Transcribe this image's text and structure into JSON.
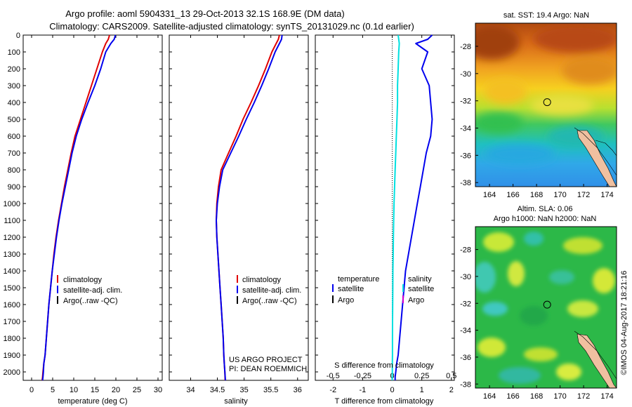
{
  "figure": {
    "title_line1": "Argo profile: aoml 5904331_13 29-Oct-2013 32.1S 168.9E (DM data)",
    "title_line2": "Climatology: CARS2009. Satellite-adjusted climatology: synTS_20131029.nc (0.1d earlier)",
    "project_line1": "US ARGO PROJECT",
    "project_line2": "PI: DEAN ROEMMICH",
    "stamp": "©IMOS 04-Aug-2017 18:21:16"
  },
  "colors": {
    "climatology": "#e00000",
    "satellite": "#0000ee",
    "argo": "#000000",
    "salinity_satellite": "#00e0e0",
    "salinity_argo": "#d000d0"
  },
  "depth_axis": {
    "ticks": [
      "0",
      "100",
      "200",
      "300",
      "400",
      "500",
      "600",
      "700",
      "800",
      "900",
      "1000",
      "1100",
      "1200",
      "1300",
      "1400",
      "1500",
      "1600",
      "1700",
      "1800",
      "1900",
      "2000"
    ],
    "range": [
      0,
      2050
    ]
  },
  "legend": {
    "climatology": "climatology",
    "satellite": "satellite-adj. clim.",
    "argo": "Argo(..raw -QC)"
  },
  "diff_legend": {
    "temp_header": "temperature",
    "sal_header": "salinity",
    "temp_sat": "satellite",
    "temp_argo": "Argo",
    "sal_sat": "satellite",
    "sal_argo": "Argo"
  },
  "chart_data": [
    {
      "type": "line",
      "xlabel": "temperature (deg C)",
      "ylabel": "",
      "xlim": [
        -2,
        31
      ],
      "ylim": [
        2050,
        0
      ],
      "xticks": [
        "0",
        "5",
        "10",
        "15",
        "20",
        "25",
        "30"
      ],
      "series": [
        {
          "name": "climatology",
          "x": [
            18.5,
            18.2,
            17.6,
            16.8,
            15.5,
            14.2,
            12.9,
            11.6,
            10.3,
            9.4,
            8.6,
            7.8,
            7.1,
            6.4,
            5.8,
            5.3,
            4.9,
            4.5,
            4.1,
            3.8,
            3.5,
            3.2,
            2.9,
            2.7,
            2.6,
            2.5
          ],
          "y": [
            0,
            25,
            50,
            100,
            200,
            300,
            400,
            500,
            600,
            700,
            800,
            900,
            1000,
            1100,
            1200,
            1300,
            1400,
            1500,
            1600,
            1700,
            1800,
            1900,
            1950,
            2000,
            2030,
            2050
          ]
        },
        {
          "name": "satellite-adj. clim.",
          "x": [
            19.9,
            19.6,
            18.8,
            17.6,
            16.4,
            15.0,
            13.4,
            11.9,
            10.6,
            9.6,
            8.8,
            8.0,
            7.2,
            6.5,
            5.9,
            5.4,
            4.9,
            4.5,
            4.1,
            3.8,
            3.5,
            3.2,
            2.9,
            2.8,
            2.7,
            2.6
          ],
          "y": [
            0,
            25,
            50,
            100,
            200,
            300,
            400,
            500,
            600,
            700,
            800,
            900,
            1000,
            1100,
            1200,
            1300,
            1400,
            1500,
            1600,
            1700,
            1800,
            1900,
            1950,
            2000,
            2030,
            2050
          ]
        }
      ]
    },
    {
      "type": "line",
      "xlabel": "salinity",
      "ylabel": "",
      "xlim": [
        33.6,
        36.2
      ],
      "ylim": [
        2050,
        0
      ],
      "xticks": [
        "34",
        "34.5",
        "35",
        "35.5",
        "36"
      ],
      "series": [
        {
          "name": "climatology",
          "x": [
            35.66,
            35.64,
            35.6,
            35.52,
            35.4,
            35.27,
            35.13,
            34.98,
            34.85,
            34.71,
            34.57,
            34.52,
            34.49,
            34.48,
            34.49,
            34.51,
            34.53,
            34.55,
            34.57,
            34.59,
            34.61,
            34.62,
            34.63,
            34.64,
            34.645
          ],
          "y": [
            0,
            25,
            50,
            100,
            200,
            300,
            400,
            500,
            600,
            700,
            800,
            900,
            1000,
            1100,
            1200,
            1300,
            1400,
            1500,
            1600,
            1700,
            1800,
            1900,
            1950,
            2000,
            2050
          ]
        },
        {
          "name": "satellite-adj. clim.",
          "x": [
            35.71,
            35.7,
            35.66,
            35.58,
            35.46,
            35.33,
            35.19,
            35.04,
            34.9,
            34.75,
            34.6,
            34.54,
            34.5,
            34.48,
            34.49,
            34.51,
            34.53,
            34.55,
            34.57,
            34.59,
            34.61,
            34.62,
            34.63,
            34.64,
            34.65
          ],
          "y": [
            0,
            25,
            50,
            100,
            200,
            300,
            400,
            500,
            600,
            700,
            800,
            900,
            1000,
            1100,
            1200,
            1300,
            1400,
            1500,
            1600,
            1700,
            1800,
            1900,
            1950,
            2000,
            2050
          ]
        }
      ]
    },
    {
      "type": "line",
      "xlabel": "T difference from climatology",
      "ylabel": "",
      "xlim": [
        -2.6,
        2.1
      ],
      "ylim": [
        2050,
        0
      ],
      "xticks": [
        "-2",
        "-1",
        "0",
        "1",
        "2"
      ],
      "top_label": "S difference from climatology",
      "top_ticks": [
        "-0.5",
        "-0.25",
        "0",
        "0.25",
        "0.5"
      ],
      "top_xlim": [
        -0.65,
        0.525
      ],
      "series": [
        {
          "name": "temperature satellite",
          "x": [
            1.35,
            1.2,
            0.8,
            1.2,
            1.0,
            1.25,
            1.3,
            1.35,
            1.3,
            1.15,
            1.05,
            0.95,
            0.85,
            0.75,
            0.65,
            0.55,
            0.45,
            0.4,
            0.35,
            0.3,
            0.25,
            0.2,
            0.15,
            0.12,
            0.1,
            0.1
          ],
          "y": [
            0,
            25,
            50,
            100,
            200,
            300,
            400,
            500,
            600,
            700,
            800,
            900,
            1000,
            1100,
            1200,
            1300,
            1400,
            1500,
            1600,
            1700,
            1800,
            1900,
            1950,
            2000,
            2030,
            2050
          ]
        },
        {
          "name": "salinity satellite",
          "x": [
            0.05,
            0.055,
            0.06,
            0.055,
            0.05,
            0.045,
            0.045,
            0.04,
            0.035,
            0.03,
            0.025,
            0.02,
            0.015,
            0.012,
            0.01,
            0.008,
            0.006,
            0.005,
            0.004,
            0.003,
            0.002,
            0.002,
            0.001,
            0.001,
            0.0
          ],
          "y": [
            0,
            25,
            50,
            100,
            200,
            300,
            400,
            500,
            600,
            700,
            800,
            900,
            1000,
            1100,
            1200,
            1300,
            1400,
            1500,
            1600,
            1700,
            1800,
            1900,
            1950,
            2000,
            2050
          ]
        }
      ]
    },
    {
      "type": "heatmap",
      "title": "sat. SST: 19.4  Argo: NaN",
      "xticks": [
        "164",
        "166",
        "168",
        "170",
        "172",
        "174"
      ],
      "yticks": [
        "-28",
        "-30",
        "-32",
        "-34",
        "-36",
        "-38"
      ],
      "xlim": [
        162.8,
        174.8
      ],
      "ylim": [
        -38.3,
        -26.3
      ],
      "marker": {
        "lon": 168.9,
        "lat": -32.1
      }
    },
    {
      "type": "heatmap",
      "title_line1": "Altim. SLA: 0.06",
      "title_line2": "Argo h1000: NaN h2000: NaN",
      "xticks": [
        "164",
        "166",
        "168",
        "170",
        "172",
        "174"
      ],
      "yticks": [
        "-28",
        "-30",
        "-32",
        "-34",
        "-36",
        "-38"
      ],
      "xlim": [
        162.8,
        174.8
      ],
      "ylim": [
        -38.3,
        -26.3
      ],
      "marker": {
        "lon": 168.9,
        "lat": -32.1
      }
    }
  ]
}
